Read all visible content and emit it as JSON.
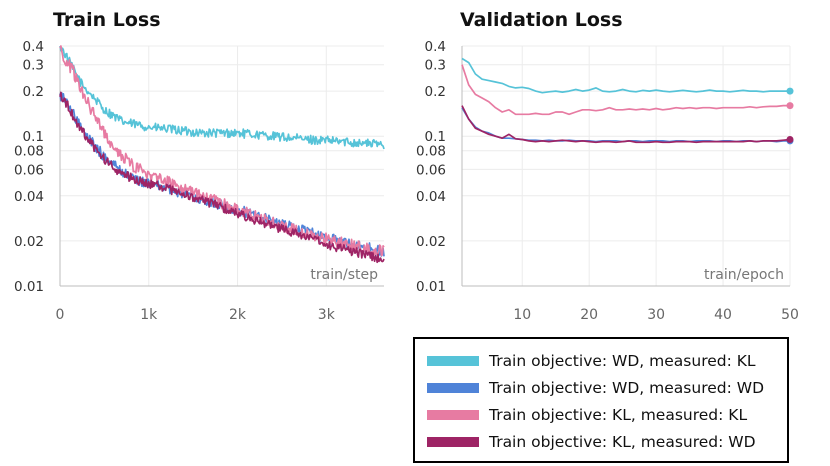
{
  "chart_data": [
    {
      "type": "line",
      "title": "Train Loss",
      "xlabel": "train/step",
      "ylabel": "",
      "yscale": "log",
      "ylim": [
        0.01,
        0.4
      ],
      "xlim": [
        0,
        3650
      ],
      "yticks": [
        {
          "value": 0.4,
          "label": "0.4"
        },
        {
          "value": 0.3,
          "label": "0.3"
        },
        {
          "value": 0.2,
          "label": "0.2"
        },
        {
          "value": 0.1,
          "label": "0.1"
        },
        {
          "value": 0.08,
          "label": "0.08"
        },
        {
          "value": 0.06,
          "label": "0.06"
        },
        {
          "value": 0.04,
          "label": "0.04"
        },
        {
          "value": 0.02,
          "label": "0.02"
        },
        {
          "value": 0.01,
          "label": "0.01"
        }
      ],
      "xticks": [
        {
          "value": 0,
          "label": "0"
        },
        {
          "value": 1000,
          "label": "1k"
        },
        {
          "value": 2000,
          "label": "2k"
        },
        {
          "value": 3000,
          "label": "3k"
        }
      ],
      "grid": true,
      "series": [
        {
          "name": "Train objective: WD, measured: KL",
          "color": "#56c3d8",
          "x": [
            0,
            50,
            150,
            250,
            350,
            500,
            700,
            1000,
            1300,
            1600,
            2000,
            2400,
            2800,
            3200,
            3650
          ],
          "y": [
            0.4,
            0.36,
            0.28,
            0.22,
            0.19,
            0.15,
            0.125,
            0.115,
            0.11,
            0.105,
            0.105,
            0.1,
            0.095,
            0.092,
            0.088
          ],
          "noise": 0.03
        },
        {
          "name": "Train objective: WD, measured: WD",
          "color": "#4f83d8",
          "x": [
            0,
            100,
            200,
            300,
            400,
            500,
            700,
            900,
            1200,
            1500,
            1800,
            2100,
            2400,
            2700,
            3000,
            3300,
            3650
          ],
          "y": [
            0.19,
            0.16,
            0.125,
            0.1,
            0.085,
            0.073,
            0.058,
            0.05,
            0.045,
            0.04,
            0.035,
            0.031,
            0.027,
            0.024,
            0.021,
            0.019,
            0.017
          ],
          "noise": 0.035
        },
        {
          "name": "Train objective: KL, measured: KL",
          "color": "#e77ba2",
          "x": [
            0,
            50,
            150,
            250,
            350,
            450,
            600,
            800,
            1000,
            1300,
            1600,
            1900,
            2200,
            2500,
            2800,
            3100,
            3400,
            3650
          ],
          "y": [
            0.4,
            0.33,
            0.27,
            0.2,
            0.15,
            0.12,
            0.085,
            0.065,
            0.055,
            0.047,
            0.04,
            0.034,
            0.029,
            0.025,
            0.022,
            0.02,
            0.018,
            0.017
          ],
          "noise": 0.04
        },
        {
          "name": "Train objective: KL, measured: WD",
          "color": "#9e2465",
          "x": [
            0,
            100,
            200,
            300,
            400,
            500,
            700,
            900,
            1200,
            1500,
            1800,
            2100,
            2400,
            2700,
            3000,
            3300,
            3650
          ],
          "y": [
            0.195,
            0.155,
            0.12,
            0.098,
            0.082,
            0.07,
            0.056,
            0.05,
            0.045,
            0.039,
            0.034,
            0.029,
            0.025,
            0.022,
            0.019,
            0.017,
            0.015
          ],
          "noise": 0.03
        }
      ]
    },
    {
      "type": "line",
      "title": "Validation Loss",
      "xlabel": "train/epoch",
      "ylabel": "",
      "yscale": "log",
      "ylim": [
        0.01,
        0.4
      ],
      "xlim": [
        1,
        50
      ],
      "yticks": [
        {
          "value": 0.4,
          "label": "0.4"
        },
        {
          "value": 0.3,
          "label": "0.3"
        },
        {
          "value": 0.2,
          "label": "0.2"
        },
        {
          "value": 0.1,
          "label": "0.1"
        },
        {
          "value": 0.08,
          "label": "0.08"
        },
        {
          "value": 0.06,
          "label": "0.06"
        },
        {
          "value": 0.04,
          "label": "0.04"
        },
        {
          "value": 0.02,
          "label": "0.02"
        },
        {
          "value": 0.01,
          "label": "0.01"
        }
      ],
      "xticks": [
        {
          "value": 10,
          "label": "10"
        },
        {
          "value": 20,
          "label": "20"
        },
        {
          "value": 30,
          "label": "30"
        },
        {
          "value": 40,
          "label": "40"
        },
        {
          "value": 50,
          "label": "50"
        }
      ],
      "grid": true,
      "series": [
        {
          "name": "Train objective: WD, measured: KL",
          "color": "#56c3d8",
          "end_marker": true,
          "x": [
            1,
            2,
            3,
            4,
            5,
            6,
            7,
            8,
            9,
            10,
            11,
            12,
            13,
            14,
            15,
            16,
            17,
            18,
            19,
            20,
            21,
            22,
            23,
            24,
            25,
            26,
            27,
            28,
            29,
            30,
            31,
            32,
            33,
            34,
            35,
            36,
            37,
            38,
            39,
            40,
            41,
            42,
            43,
            44,
            45,
            46,
            47,
            48,
            49,
            50
          ],
          "y": [
            0.33,
            0.31,
            0.26,
            0.24,
            0.235,
            0.23,
            0.225,
            0.215,
            0.21,
            0.212,
            0.208,
            0.2,
            0.195,
            0.198,
            0.2,
            0.197,
            0.2,
            0.205,
            0.2,
            0.203,
            0.21,
            0.2,
            0.198,
            0.2,
            0.205,
            0.2,
            0.198,
            0.202,
            0.2,
            0.203,
            0.2,
            0.198,
            0.2,
            0.202,
            0.2,
            0.198,
            0.2,
            0.203,
            0.2,
            0.2,
            0.198,
            0.2,
            0.202,
            0.2,
            0.2,
            0.198,
            0.2,
            0.2,
            0.2,
            0.2
          ]
        },
        {
          "name": "Train objective: WD, measured: WD",
          "color": "#4f83d8",
          "end_marker": true,
          "x": [
            1,
            2,
            3,
            4,
            5,
            6,
            7,
            8,
            9,
            10,
            11,
            12,
            13,
            14,
            15,
            16,
            17,
            18,
            19,
            20,
            21,
            22,
            23,
            24,
            25,
            26,
            27,
            28,
            29,
            30,
            31,
            32,
            33,
            34,
            35,
            36,
            37,
            38,
            39,
            40,
            41,
            42,
            43,
            44,
            45,
            46,
            47,
            48,
            49,
            50
          ],
          "y": [
            0.155,
            0.13,
            0.115,
            0.108,
            0.105,
            0.1,
            0.097,
            0.097,
            0.096,
            0.095,
            0.094,
            0.094,
            0.093,
            0.094,
            0.093,
            0.093,
            0.094,
            0.093,
            0.093,
            0.093,
            0.092,
            0.093,
            0.093,
            0.093,
            0.092,
            0.093,
            0.093,
            0.092,
            0.093,
            0.093,
            0.093,
            0.092,
            0.093,
            0.093,
            0.092,
            0.093,
            0.093,
            0.093,
            0.092,
            0.093,
            0.093,
            0.092,
            0.093,
            0.093,
            0.092,
            0.093,
            0.093,
            0.092,
            0.093,
            0.093
          ]
        },
        {
          "name": "Train objective: KL, measured: KL",
          "color": "#e77ba2",
          "end_marker": true,
          "x": [
            1,
            2,
            3,
            4,
            5,
            6,
            7,
            8,
            9,
            10,
            11,
            12,
            13,
            14,
            15,
            16,
            17,
            18,
            19,
            20,
            21,
            22,
            23,
            24,
            25,
            26,
            27,
            28,
            29,
            30,
            31,
            32,
            33,
            34,
            35,
            36,
            37,
            38,
            39,
            40,
            41,
            42,
            43,
            44,
            45,
            46,
            47,
            48,
            49,
            50
          ],
          "y": [
            0.3,
            0.22,
            0.19,
            0.18,
            0.17,
            0.155,
            0.145,
            0.15,
            0.14,
            0.14,
            0.14,
            0.142,
            0.14,
            0.14,
            0.145,
            0.145,
            0.14,
            0.145,
            0.15,
            0.15,
            0.148,
            0.15,
            0.155,
            0.15,
            0.15,
            0.152,
            0.15,
            0.152,
            0.15,
            0.153,
            0.15,
            0.152,
            0.155,
            0.153,
            0.155,
            0.153,
            0.155,
            0.155,
            0.153,
            0.155,
            0.155,
            0.155,
            0.155,
            0.157,
            0.155,
            0.157,
            0.158,
            0.158,
            0.16,
            0.16
          ]
        },
        {
          "name": "Train objective: KL, measured: WD",
          "color": "#9e2465",
          "end_marker": true,
          "x": [
            1,
            2,
            3,
            4,
            5,
            6,
            7,
            8,
            9,
            10,
            11,
            12,
            13,
            14,
            15,
            16,
            17,
            18,
            19,
            20,
            21,
            22,
            23,
            24,
            25,
            26,
            27,
            28,
            29,
            30,
            31,
            32,
            33,
            34,
            35,
            36,
            37,
            38,
            39,
            40,
            41,
            42,
            43,
            44,
            45,
            46,
            47,
            48,
            49,
            50
          ],
          "y": [
            0.16,
            0.13,
            0.113,
            0.108,
            0.103,
            0.1,
            0.097,
            0.103,
            0.096,
            0.095,
            0.093,
            0.092,
            0.093,
            0.092,
            0.093,
            0.094,
            0.093,
            0.092,
            0.093,
            0.092,
            0.091,
            0.092,
            0.092,
            0.091,
            0.092,
            0.093,
            0.091,
            0.091,
            0.091,
            0.092,
            0.091,
            0.091,
            0.092,
            0.092,
            0.092,
            0.091,
            0.092,
            0.092,
            0.092,
            0.092,
            0.092,
            0.092,
            0.092,
            0.093,
            0.092,
            0.093,
            0.093,
            0.093,
            0.094,
            0.095
          ]
        }
      ]
    }
  ],
  "legend": {
    "items": [
      {
        "label": "Train objective: WD, measured: KL",
        "color": "#56c3d8"
      },
      {
        "label": "Train objective: WD, measured: WD",
        "color": "#4f83d8"
      },
      {
        "label": "Train objective: KL, measured: KL",
        "color": "#e77ba2"
      },
      {
        "label": "Train objective: KL, measured: WD",
        "color": "#9e2465"
      }
    ]
  }
}
